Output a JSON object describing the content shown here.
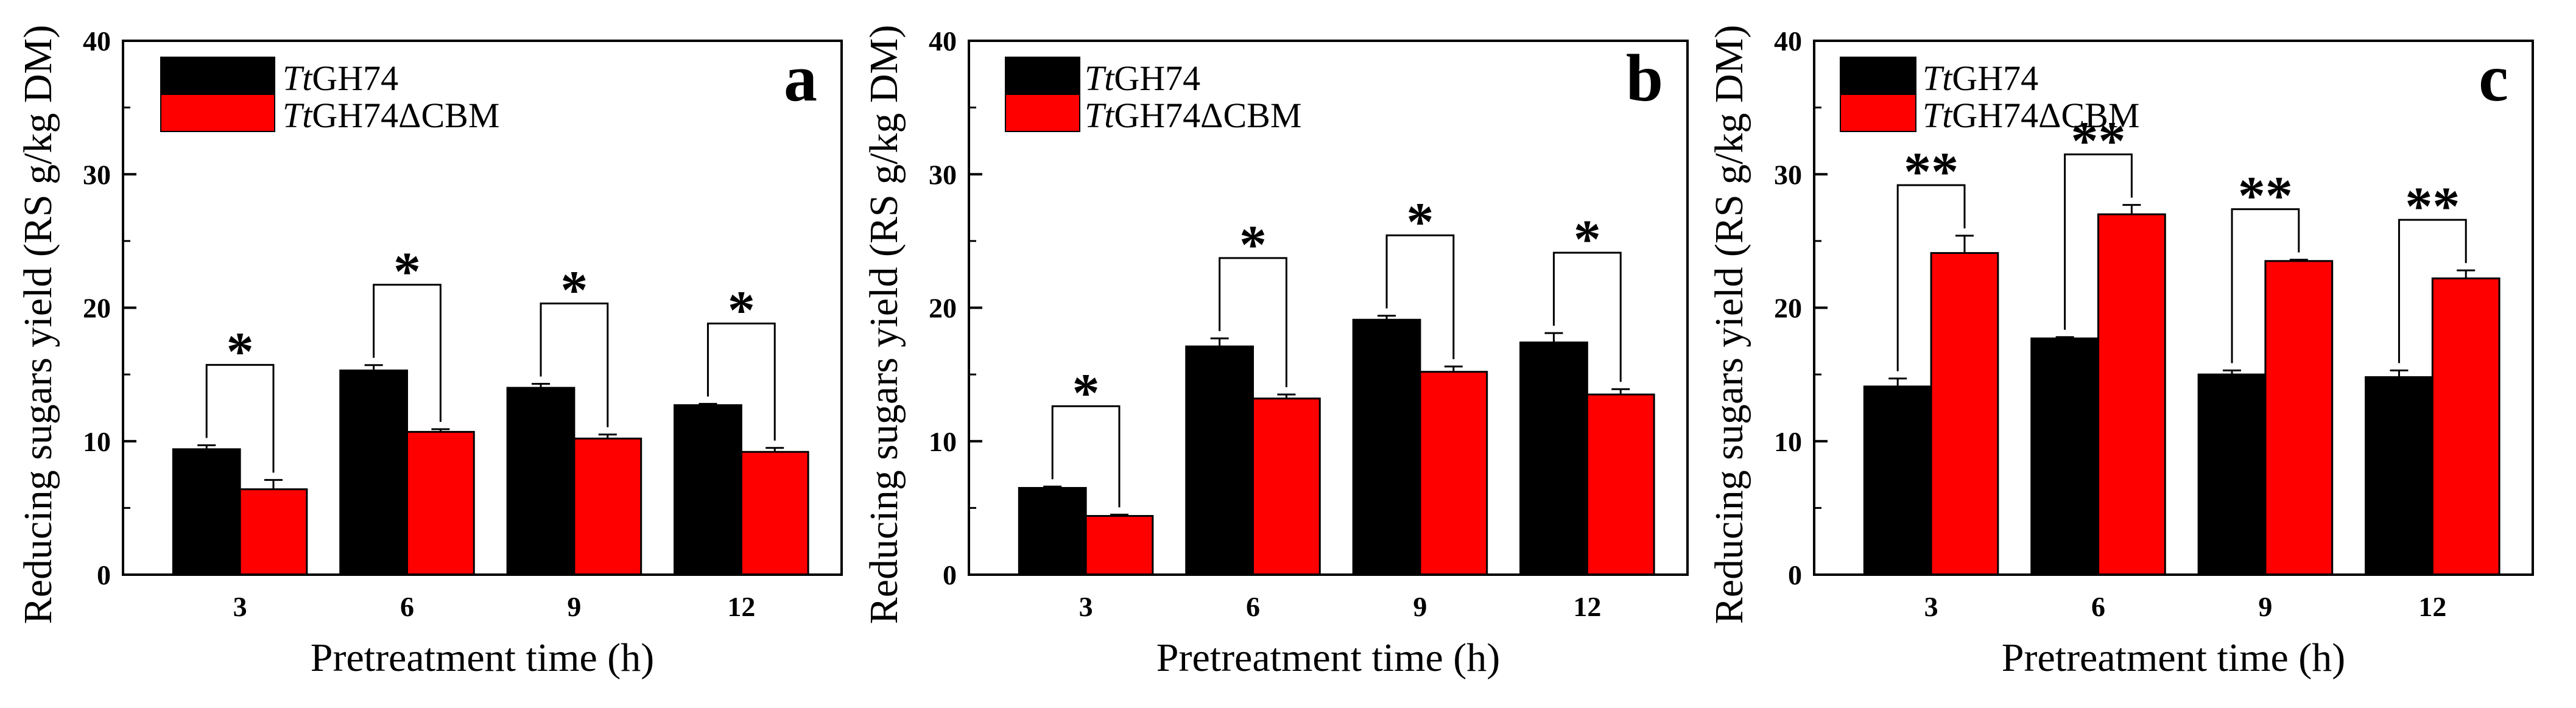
{
  "chart_data": [
    {
      "type": "bar",
      "panel_label": "a",
      "xlabel": "Pretreatment time (h)",
      "ylabel": "Reducing sugars yield (RS g/kg DM)",
      "x": [
        3,
        6,
        9,
        12
      ],
      "categories": [
        "3",
        "6",
        "9",
        "12"
      ],
      "xlim": [
        0.9,
        13.8
      ],
      "ylim": [
        0,
        40
      ],
      "yticks": [
        0,
        10,
        20,
        30,
        40
      ],
      "grid": false,
      "legend_position": "top-left",
      "series": [
        {
          "name": "TtGH74",
          "italic_chars": 2,
          "color": "#000000",
          "values": [
            9.4,
            15.3,
            14.0,
            12.7
          ],
          "errors": [
            0.3,
            0.4,
            0.3,
            0.1
          ]
        },
        {
          "name": "TtGH74ΔCBM",
          "italic_chars": 2,
          "color": "#ff0000",
          "values": [
            6.4,
            10.7,
            10.2,
            9.2
          ],
          "errors": [
            0.7,
            0.2,
            0.3,
            0.3
          ]
        }
      ],
      "significance": [
        {
          "x": 3,
          "label": "*"
        },
        {
          "x": 6,
          "label": "*"
        },
        {
          "x": 9,
          "label": "*"
        },
        {
          "x": 12,
          "label": "*"
        }
      ]
    },
    {
      "type": "bar",
      "panel_label": "b",
      "xlabel": "Pretreatment time (h)",
      "ylabel": "Reducing sugars yield (RS g/kg DM)",
      "x": [
        3,
        6,
        9,
        12
      ],
      "categories": [
        "3",
        "6",
        "9",
        "12"
      ],
      "xlim": [
        0.9,
        13.8
      ],
      "ylim": [
        0,
        40
      ],
      "yticks": [
        0,
        10,
        20,
        30,
        40
      ],
      "grid": false,
      "legend_position": "top-left",
      "series": [
        {
          "name": "TtGH74",
          "italic_chars": 2,
          "color": "#000000",
          "values": [
            6.5,
            17.1,
            19.1,
            17.4
          ],
          "errors": [
            0.1,
            0.6,
            0.3,
            0.7
          ]
        },
        {
          "name": "TtGH74ΔCBM",
          "italic_chars": 2,
          "color": "#ff0000",
          "values": [
            4.4,
            13.2,
            15.2,
            13.5
          ],
          "errors": [
            0.1,
            0.3,
            0.4,
            0.4
          ]
        }
      ],
      "significance": [
        {
          "x": 3,
          "label": "*"
        },
        {
          "x": 6,
          "label": "*"
        },
        {
          "x": 9,
          "label": "*"
        },
        {
          "x": 12,
          "label": "*"
        }
      ]
    },
    {
      "type": "bar",
      "panel_label": "c",
      "xlabel": "Pretreatment time (h)",
      "ylabel": "Reducing sugars yield (RS g/kg DM)",
      "x": [
        3,
        6,
        9,
        12
      ],
      "categories": [
        "3",
        "6",
        "9",
        "12"
      ],
      "xlim": [
        0.9,
        13.8
      ],
      "ylim": [
        0,
        40
      ],
      "yticks": [
        0,
        10,
        20,
        30,
        40
      ],
      "grid": false,
      "legend_position": "top-left",
      "series": [
        {
          "name": "TtGH74",
          "italic_chars": 2,
          "color": "#000000",
          "values": [
            14.1,
            17.7,
            15.0,
            14.8
          ],
          "errors": [
            0.6,
            0.1,
            0.3,
            0.5
          ]
        },
        {
          "name": "TtGH74ΔCBM",
          "italic_chars": 2,
          "color": "#ff0000",
          "values": [
            24.1,
            27.0,
            23.5,
            22.2
          ],
          "errors": [
            1.3,
            0.7,
            0.1,
            0.6
          ]
        }
      ],
      "significance": [
        {
          "x": 3,
          "label": "**"
        },
        {
          "x": 6,
          "label": "**"
        },
        {
          "x": 9,
          "label": "**"
        },
        {
          "x": 12,
          "label": "**"
        }
      ]
    }
  ]
}
